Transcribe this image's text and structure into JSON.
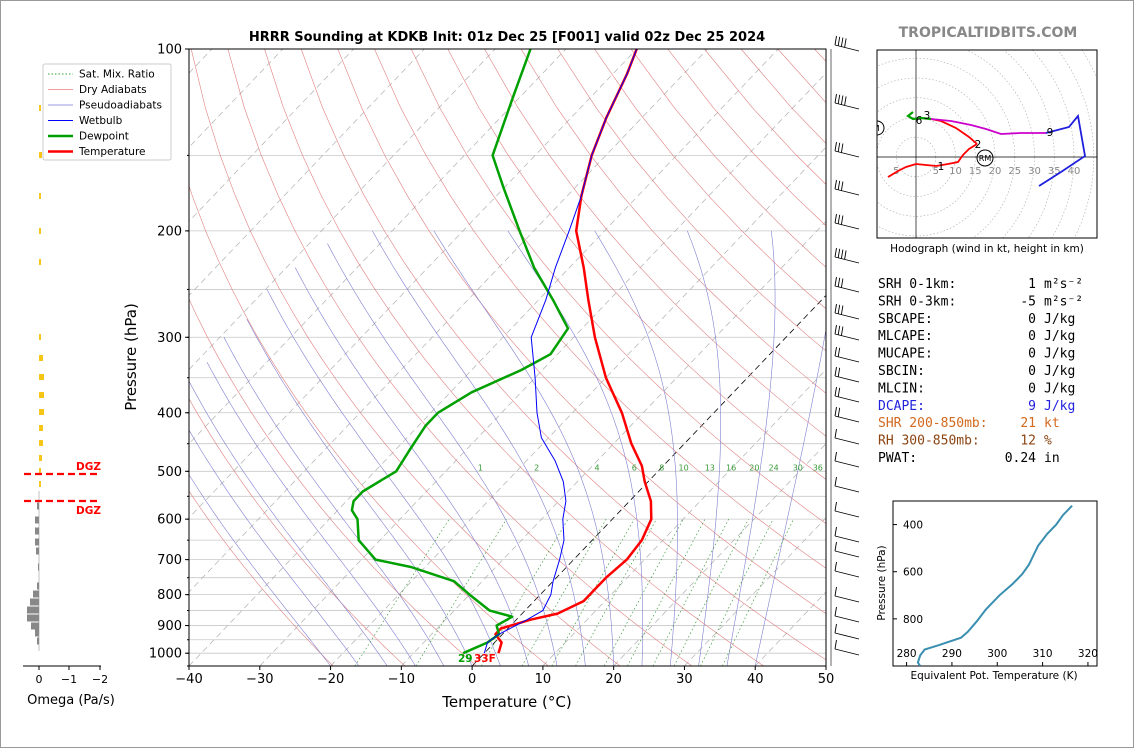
{
  "title": "HRRR Sounding at KDKB Init: 01z Dec 25 [F001] valid 02z Dec 25 2024",
  "site_brand": "TROPICALTIDBITS.COM",
  "chart_data": [
    {
      "type": "skew-t",
      "xlabel": "Temperature (°C)",
      "ylabel": "Pressure (hPa)",
      "xlim": [
        -40,
        50
      ],
      "ylim": [
        1050,
        100
      ],
      "y_scale": "log",
      "x_ticks": [
        -40,
        -30,
        -20,
        -10,
        0,
        10,
        20,
        30,
        40,
        50
      ],
      "y_ticks": [
        100,
        200,
        300,
        400,
        500,
        600,
        700,
        800,
        900,
        1000
      ],
      "grid": true,
      "legend": {
        "placement": "top-left",
        "entries": [
          {
            "label": "Sat. Mix. Ratio",
            "color": "#2ca02c",
            "style": "dotted"
          },
          {
            "label": "Dry Adiabats",
            "color": "#d62728",
            "style": "solid-thin"
          },
          {
            "label": "Pseudoadiabats",
            "color": "#1f1fbf",
            "style": "solid-thin"
          },
          {
            "label": "Wetbulb",
            "color": "#0000ff",
            "style": "solid"
          },
          {
            "label": "Dewpoint",
            "color": "#00a000",
            "style": "solid-thick"
          },
          {
            "label": "Temperature",
            "color": "#ff0000",
            "style": "solid-thick"
          }
        ]
      },
      "mixing_ratio_labels": [
        "1",
        "2",
        "4",
        "6",
        "8",
        "10",
        "13",
        "16",
        "20",
        "24",
        "30",
        "36"
      ],
      "surface_label": "29",
      "surface_label2": "33F",
      "series": [
        {
          "name": "Temperature",
          "color": "#ff0000",
          "points": [
            [
              1000,
              2
            ],
            [
              960,
              1
            ],
            [
              930,
              -1
            ],
            [
              910,
              -1
            ],
            [
              880,
              2
            ],
            [
              860,
              5
            ],
            [
              820,
              7
            ],
            [
              780,
              7
            ],
            [
              750,
              7
            ],
            [
              700,
              7.5
            ],
            [
              650,
              7
            ],
            [
              600,
              5.5
            ],
            [
              560,
              3
            ],
            [
              520,
              -0.5
            ],
            [
              490,
              -3
            ],
            [
              450,
              -7.5
            ],
            [
              400,
              -13
            ],
            [
              350,
              -20
            ],
            [
              300,
              -27
            ],
            [
              260,
              -33
            ],
            [
              230,
              -38
            ],
            [
              200,
              -44
            ],
            [
              175,
              -48
            ],
            [
              150,
              -52
            ],
            [
              130,
              -55
            ],
            [
              110,
              -58
            ],
            [
              100,
              -60
            ]
          ]
        },
        {
          "name": "Dewpoint",
          "color": "#00a000",
          "points": [
            [
              1000,
              -3
            ],
            [
              960,
              -1
            ],
            [
              930,
              -0.5
            ],
            [
              900,
              -2
            ],
            [
              870,
              -1
            ],
            [
              850,
              -5
            ],
            [
              800,
              -10
            ],
            [
              760,
              -14
            ],
            [
              720,
              -22
            ],
            [
              700,
              -28
            ],
            [
              650,
              -33
            ],
            [
              600,
              -36
            ],
            [
              580,
              -38
            ],
            [
              560,
              -39
            ],
            [
              540,
              -39
            ],
            [
              500,
              -37
            ],
            [
              460,
              -38
            ],
            [
              420,
              -39
            ],
            [
              400,
              -39
            ],
            [
              370,
              -37
            ],
            [
              340,
              -33
            ],
            [
              320,
              -31
            ],
            [
              290,
              -32
            ],
            [
              260,
              -38
            ],
            [
              230,
              -45
            ],
            [
              200,
              -52
            ],
            [
              170,
              -60
            ],
            [
              150,
              -66
            ],
            [
              120,
              -71
            ],
            [
              100,
              -75
            ]
          ]
        },
        {
          "name": "Wetbulb",
          "color": "#0000ff",
          "points": [
            [
              1000,
              0
            ],
            [
              960,
              -1
            ],
            [
              930,
              -0.5
            ],
            [
              880,
              1.5
            ],
            [
              850,
              2.5
            ],
            [
              800,
              1.5
            ],
            [
              760,
              0
            ],
            [
              700,
              -2
            ],
            [
              650,
              -4
            ],
            [
              600,
              -7
            ],
            [
              560,
              -9
            ],
            [
              520,
              -12
            ],
            [
              480,
              -16
            ],
            [
              440,
              -21
            ],
            [
              400,
              -25
            ],
            [
              350,
              -30
            ],
            [
              300,
              -36
            ],
            [
              260,
              -39
            ],
            [
              230,
              -42
            ],
            [
              200,
              -45
            ],
            [
              175,
              -48
            ],
            [
              150,
              -52
            ],
            [
              130,
              -55
            ],
            [
              110,
              -58
            ],
            [
              100,
              -60
            ]
          ]
        }
      ]
    },
    {
      "type": "line",
      "name": "hodograph",
      "caption": "Hodograph (wind in kt, height in km)",
      "ring_labels": [
        "5",
        "5",
        "10",
        "15",
        "20",
        "25",
        "30",
        "35",
        "40"
      ],
      "point_labels": [
        "1",
        "2",
        "3",
        "6",
        "9"
      ],
      "markers": [
        "LM",
        "RM"
      ]
    },
    {
      "type": "line",
      "name": "equivalent-potential-temperature",
      "xlabel": "Equivalent Pot. Temperature (K)",
      "ylabel": "Pressure (hPa)",
      "x_ticks": [
        280,
        290,
        300,
        310,
        320
      ],
      "y_ticks": [
        400,
        600,
        800
      ],
      "xlim": [
        277,
        322
      ],
      "ylim": [
        1000,
        300
      ],
      "points": [
        [
          283,
          1000
        ],
        [
          282.5,
          985
        ],
        [
          283,
          955
        ],
        [
          284,
          930
        ],
        [
          287,
          912
        ],
        [
          292,
          880
        ],
        [
          293.5,
          855
        ],
        [
          295.5,
          810
        ],
        [
          297.5,
          760
        ],
        [
          300.5,
          700
        ],
        [
          303.5,
          650
        ],
        [
          305.5,
          610
        ],
        [
          307,
          570
        ],
        [
          308,
          530
        ],
        [
          309,
          490
        ],
        [
          311,
          440
        ],
        [
          313,
          400
        ],
        [
          314.5,
          360
        ],
        [
          316.5,
          320
        ]
      ]
    },
    {
      "type": "bar",
      "name": "omega",
      "xlabel": "Omega (Pa/s)",
      "x_ticks": [
        "0",
        "−1",
        "−2"
      ],
      "dgz_label": "DGZ"
    }
  ],
  "indices": [
    {
      "label": "SRH 0-1km:",
      "value": "1",
      "unit": "m²s⁻²",
      "color": "#000000"
    },
    {
      "label": "SRH 0-3km:",
      "value": "-5",
      "unit": "m²s⁻²",
      "color": "#000000"
    },
    {
      "label": "SBCAPE:",
      "value": "0",
      "unit": "J/kg",
      "color": "#000000"
    },
    {
      "label": "MLCAPE:",
      "value": "0",
      "unit": "J/kg",
      "color": "#000000"
    },
    {
      "label": "MUCAPE:",
      "value": "0",
      "unit": "J/kg",
      "color": "#000000"
    },
    {
      "label": "SBCIN:",
      "value": "0",
      "unit": "J/kg",
      "color": "#000000"
    },
    {
      "label": "MLCIN:",
      "value": "0",
      "unit": "J/kg",
      "color": "#000000"
    },
    {
      "label": "DCAPE:",
      "value": "9",
      "unit": "J/kg",
      "color": "#2222dd"
    },
    {
      "label": "SHR 200-850mb:",
      "value": "21",
      "unit": "kt",
      "color": "#d2691e"
    },
    {
      "label": "RH 300-850mb:",
      "value": "12",
      "unit": "%",
      "color": "#8b4513"
    },
    {
      "label": "PWAT:",
      "value": "0.24",
      "unit": "in",
      "color": "#000000"
    }
  ]
}
